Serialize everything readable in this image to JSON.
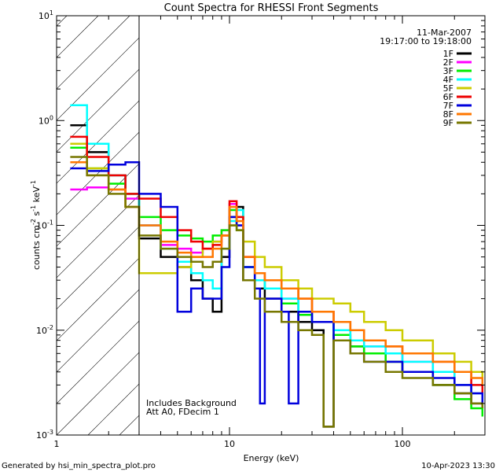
{
  "chart_data": {
    "type": "line",
    "title": "Count Spectra for RHESSI Front Segments",
    "xlabel": "Energy (keV)",
    "ylabel": "counts cm-2 s-1 keV-1",
    "ylabel_parts": {
      "base": "counts cm",
      "exp1": "-2",
      "s": " s",
      "exp2": "-1",
      "kev": " keV",
      "exp3": "-1"
    },
    "xscale": "log",
    "yscale": "log",
    "xlim": [
      1,
      300
    ],
    "ylim": [
      0.001,
      10
    ],
    "x_ticks": [
      {
        "value": 1,
        "label": "1"
      },
      {
        "value": 10,
        "label": "10"
      },
      {
        "value": 100,
        "label": "100"
      }
    ],
    "y_ticks": [
      {
        "value": 0.001,
        "mant": "10",
        "exp": "-3"
      },
      {
        "value": 0.01,
        "mant": "10",
        "exp": "-2"
      },
      {
        "value": 0.1,
        "mant": "10",
        "exp": "-1"
      },
      {
        "value": 1,
        "mant": "10",
        "exp": "0"
      },
      {
        "value": 10,
        "mant": "10",
        "exp": "1"
      }
    ],
    "hatched_region": [
      1,
      3
    ],
    "date": "11-Mar-2007",
    "time_range": "19:17:00 to 19:18:00",
    "annotations": [
      "Includes Background",
      "Att A0, FDecim 1"
    ],
    "series": [
      {
        "name": "1F",
        "color": "#000000",
        "points": [
          [
            1.2,
            0.9
          ],
          [
            1.5,
            0.5
          ],
          [
            2,
            0.3
          ],
          [
            2.5,
            0.2
          ],
          [
            3,
            0.075
          ],
          [
            4,
            0.05
          ],
          [
            5,
            0.04
          ],
          [
            6,
            0.03
          ],
          [
            7,
            0.02
          ],
          [
            8,
            0.015
          ],
          [
            9,
            0.05
          ],
          [
            10,
            0.12
          ],
          [
            11,
            0.15
          ],
          [
            12,
            0.03
          ],
          [
            14,
            0.025
          ],
          [
            16,
            0.02
          ],
          [
            20,
            0.015
          ],
          [
            25,
            0.012
          ],
          [
            30,
            0.01
          ],
          [
            35,
            0.0012
          ],
          [
            40,
            0.009
          ],
          [
            50,
            0.007
          ],
          [
            60,
            0.006
          ],
          [
            80,
            0.005
          ],
          [
            100,
            0.004
          ],
          [
            150,
            0.003
          ],
          [
            200,
            0.0025
          ],
          [
            250,
            0.002
          ],
          [
            290,
            0.0018
          ]
        ]
      },
      {
        "name": "2F",
        "color": "#ff00ff",
        "points": [
          [
            1.2,
            0.22
          ],
          [
            1.5,
            0.23
          ],
          [
            2,
            0.22
          ],
          [
            2.5,
            0.18
          ],
          [
            3,
            0.1
          ],
          [
            4,
            0.065
          ],
          [
            5,
            0.06
          ],
          [
            6,
            0.055
          ],
          [
            7,
            0.06
          ],
          [
            8,
            0.07
          ],
          [
            9,
            0.09
          ],
          [
            10,
            0.16
          ],
          [
            11,
            0.1
          ],
          [
            12,
            0.05
          ],
          [
            14,
            0.03
          ],
          [
            16,
            0.025
          ],
          [
            20,
            0.02
          ],
          [
            25,
            0.015
          ],
          [
            30,
            0.012
          ],
          [
            40,
            0.01
          ],
          [
            50,
            0.008
          ],
          [
            60,
            0.007
          ],
          [
            80,
            0.006
          ],
          [
            100,
            0.005
          ],
          [
            150,
            0.004
          ],
          [
            200,
            0.003
          ],
          [
            250,
            0.0025
          ],
          [
            290,
            0.002
          ]
        ]
      },
      {
        "name": "3F",
        "color": "#00ee00",
        "points": [
          [
            1.2,
            0.55
          ],
          [
            1.5,
            0.35
          ],
          [
            2,
            0.25
          ],
          [
            2.5,
            0.2
          ],
          [
            3,
            0.12
          ],
          [
            4,
            0.09
          ],
          [
            5,
            0.08
          ],
          [
            6,
            0.075
          ],
          [
            7,
            0.07
          ],
          [
            8,
            0.08
          ],
          [
            9,
            0.09
          ],
          [
            10,
            0.14
          ],
          [
            11,
            0.09
          ],
          [
            12,
            0.04
          ],
          [
            14,
            0.03
          ],
          [
            16,
            0.025
          ],
          [
            20,
            0.018
          ],
          [
            25,
            0.014
          ],
          [
            30,
            0.012
          ],
          [
            40,
            0.009
          ],
          [
            50,
            0.007
          ],
          [
            60,
            0.006
          ],
          [
            80,
            0.005
          ],
          [
            100,
            0.004
          ],
          [
            150,
            0.003
          ],
          [
            200,
            0.0022
          ],
          [
            250,
            0.0018
          ],
          [
            290,
            0.0015
          ]
        ]
      },
      {
        "name": "4F",
        "color": "#00ffff",
        "points": [
          [
            1.2,
            1.4
          ],
          [
            1.5,
            0.6
          ],
          [
            2,
            0.3
          ],
          [
            2.5,
            0.2
          ],
          [
            3,
            0.1
          ],
          [
            4,
            0.06
          ],
          [
            5,
            0.045
          ],
          [
            6,
            0.035
          ],
          [
            7,
            0.03
          ],
          [
            8,
            0.025
          ],
          [
            9,
            0.06
          ],
          [
            10,
            0.11
          ],
          [
            11,
            0.14
          ],
          [
            12,
            0.04
          ],
          [
            14,
            0.03
          ],
          [
            16,
            0.025
          ],
          [
            20,
            0.02
          ],
          [
            25,
            0.015
          ],
          [
            30,
            0.012
          ],
          [
            40,
            0.01
          ],
          [
            50,
            0.008
          ],
          [
            60,
            0.007
          ],
          [
            80,
            0.006
          ],
          [
            100,
            0.005
          ],
          [
            150,
            0.004
          ],
          [
            200,
            0.003
          ],
          [
            250,
            0.0025
          ],
          [
            290,
            0.002
          ]
        ]
      },
      {
        "name": "5F",
        "color": "#cccc00",
        "points": [
          [
            1.2,
            0.6
          ],
          [
            1.5,
            0.35
          ],
          [
            2,
            0.22
          ],
          [
            2.5,
            0.15
          ],
          [
            3,
            0.035
          ],
          [
            4,
            0.035
          ],
          [
            5,
            0.04
          ],
          [
            6,
            0.05
          ],
          [
            7,
            0.06
          ],
          [
            8,
            0.07
          ],
          [
            9,
            0.08
          ],
          [
            10,
            0.1
          ],
          [
            11,
            0.12
          ],
          [
            12,
            0.07
          ],
          [
            14,
            0.05
          ],
          [
            16,
            0.04
          ],
          [
            20,
            0.03
          ],
          [
            25,
            0.025
          ],
          [
            30,
            0.02
          ],
          [
            40,
            0.018
          ],
          [
            50,
            0.015
          ],
          [
            60,
            0.012
          ],
          [
            80,
            0.01
          ],
          [
            100,
            0.008
          ],
          [
            150,
            0.006
          ],
          [
            200,
            0.005
          ],
          [
            250,
            0.004
          ],
          [
            290,
            0.0035
          ]
        ]
      },
      {
        "name": "6F",
        "color": "#ee0000",
        "points": [
          [
            1.2,
            0.7
          ],
          [
            1.5,
            0.45
          ],
          [
            2,
            0.3
          ],
          [
            2.5,
            0.2
          ],
          [
            3,
            0.18
          ],
          [
            4,
            0.12
          ],
          [
            5,
            0.09
          ],
          [
            6,
            0.07
          ],
          [
            7,
            0.06
          ],
          [
            8,
            0.065
          ],
          [
            9,
            0.08
          ],
          [
            10,
            0.17
          ],
          [
            11,
            0.12
          ],
          [
            12,
            0.05
          ],
          [
            14,
            0.035
          ],
          [
            16,
            0.03
          ],
          [
            20,
            0.025
          ],
          [
            25,
            0.02
          ],
          [
            30,
            0.015
          ],
          [
            40,
            0.012
          ],
          [
            50,
            0.01
          ],
          [
            60,
            0.008
          ],
          [
            80,
            0.007
          ],
          [
            100,
            0.006
          ],
          [
            150,
            0.005
          ],
          [
            200,
            0.004
          ],
          [
            250,
            0.003
          ],
          [
            290,
            0.0025
          ]
        ]
      },
      {
        "name": "7F",
        "color": "#0000dd",
        "points": [
          [
            1.2,
            0.35
          ],
          [
            1.5,
            0.33
          ],
          [
            2,
            0.38
          ],
          [
            2.5,
            0.4
          ],
          [
            3,
            0.2
          ],
          [
            4,
            0.15
          ],
          [
            5,
            0.015
          ],
          [
            6,
            0.025
          ],
          [
            7,
            0.02
          ],
          [
            8,
            0.02
          ],
          [
            9,
            0.04
          ],
          [
            10,
            0.12
          ],
          [
            11,
            0.1
          ],
          [
            12,
            0.04
          ],
          [
            14,
            0.025
          ],
          [
            15,
            0.002
          ],
          [
            16,
            0.02
          ],
          [
            20,
            0.015
          ],
          [
            22,
            0.002
          ],
          [
            25,
            0.015
          ],
          [
            30,
            0.012
          ],
          [
            40,
            0.008
          ],
          [
            50,
            0.006
          ],
          [
            60,
            0.005
          ],
          [
            80,
            0.005
          ],
          [
            100,
            0.004
          ],
          [
            150,
            0.0035
          ],
          [
            200,
            0.003
          ],
          [
            250,
            0.0025
          ],
          [
            290,
            0.002
          ]
        ]
      },
      {
        "name": "8F",
        "color": "#ff7700",
        "points": [
          [
            1.2,
            0.4
          ],
          [
            1.5,
            0.3
          ],
          [
            2,
            0.22
          ],
          [
            2.5,
            0.15
          ],
          [
            3,
            0.1
          ],
          [
            4,
            0.07
          ],
          [
            5,
            0.055
          ],
          [
            6,
            0.05
          ],
          [
            7,
            0.05
          ],
          [
            8,
            0.06
          ],
          [
            9,
            0.08
          ],
          [
            10,
            0.15
          ],
          [
            11,
            0.11
          ],
          [
            12,
            0.05
          ],
          [
            14,
            0.035
          ],
          [
            16,
            0.03
          ],
          [
            20,
            0.025
          ],
          [
            25,
            0.02
          ],
          [
            30,
            0.015
          ],
          [
            40,
            0.012
          ],
          [
            50,
            0.01
          ],
          [
            60,
            0.008
          ],
          [
            80,
            0.007
          ],
          [
            100,
            0.006
          ],
          [
            150,
            0.005
          ],
          [
            200,
            0.004
          ],
          [
            250,
            0.0035
          ],
          [
            290,
            0.003
          ]
        ]
      },
      {
        "name": "9F",
        "color": "#777700",
        "points": [
          [
            1.2,
            0.45
          ],
          [
            1.5,
            0.3
          ],
          [
            2,
            0.2
          ],
          [
            2.5,
            0.15
          ],
          [
            3,
            0.08
          ],
          [
            4,
            0.06
          ],
          [
            5,
            0.05
          ],
          [
            6,
            0.045
          ],
          [
            7,
            0.04
          ],
          [
            8,
            0.045
          ],
          [
            9,
            0.06
          ],
          [
            10,
            0.1
          ],
          [
            11,
            0.09
          ],
          [
            12,
            0.03
          ],
          [
            14,
            0.02
          ],
          [
            16,
            0.015
          ],
          [
            20,
            0.012
          ],
          [
            25,
            0.01
          ],
          [
            30,
            0.009
          ],
          [
            35,
            0.0012
          ],
          [
            40,
            0.008
          ],
          [
            50,
            0.006
          ],
          [
            60,
            0.005
          ],
          [
            80,
            0.004
          ],
          [
            100,
            0.0035
          ],
          [
            150,
            0.003
          ],
          [
            200,
            0.0025
          ],
          [
            250,
            0.002
          ],
          [
            290,
            0.0018
          ]
        ]
      }
    ]
  },
  "footer": {
    "generated_by": "Generated by hsi_min_spectra_plot.pro",
    "date": "10-Apr-2023 13:30"
  }
}
